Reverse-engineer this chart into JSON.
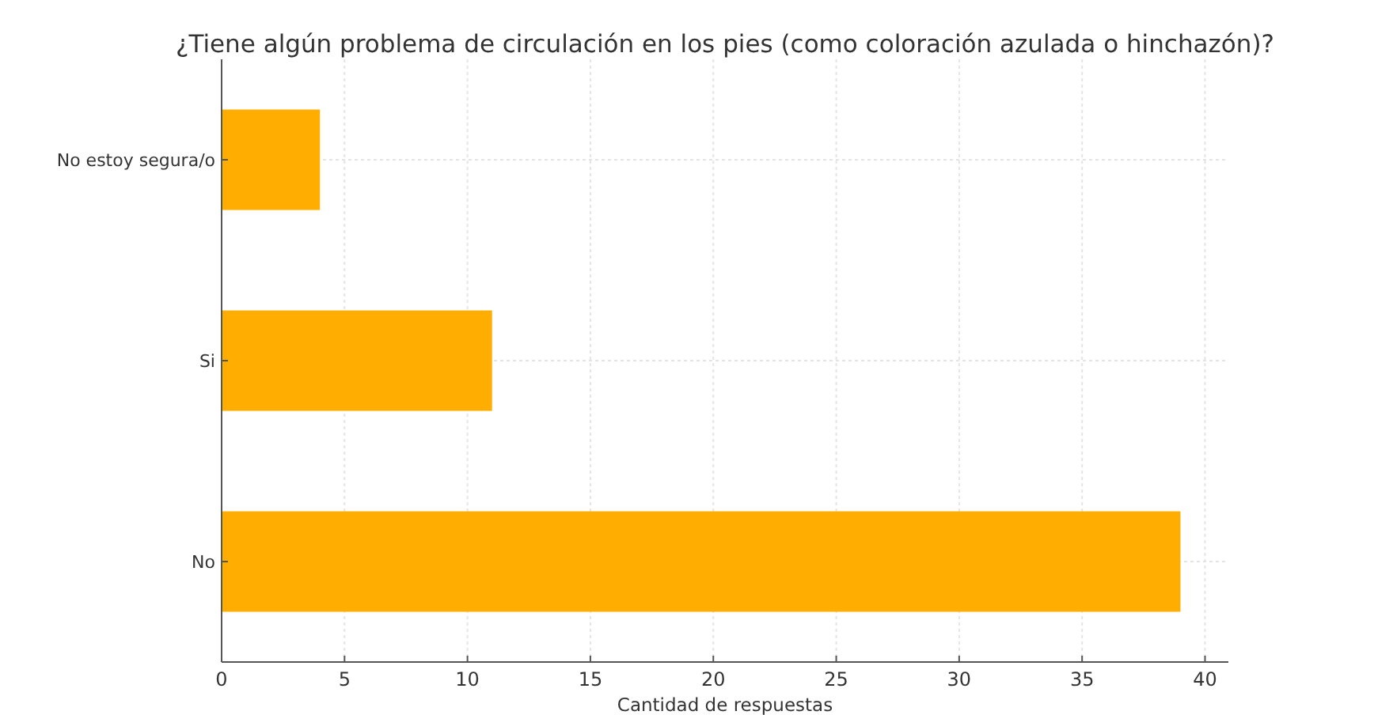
{
  "chart_data": {
    "type": "bar",
    "orientation": "horizontal",
    "title": "¿Tiene algún problema de circulación en los pies (como coloración azulada o hinchazón)?",
    "xlabel": "Cantidad de respuestas",
    "categories": [
      "No estoy segura/o",
      "Si",
      "No"
    ],
    "values": [
      4,
      11,
      39
    ],
    "color": "#ffae00",
    "xlim": [
      0,
      40.95
    ],
    "xticks": [
      0,
      5,
      10,
      15,
      20,
      25,
      30,
      35,
      40
    ],
    "grid": true
  }
}
